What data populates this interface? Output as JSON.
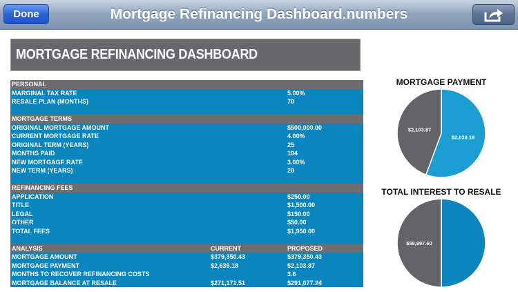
{
  "navbar": {
    "done_label": "Done",
    "title": "Mortgage Refinancing Dashboard.numbers",
    "share_icon": "share-icon"
  },
  "banner": {
    "title": "MORTGAGE REFINANCING DASHBOARD"
  },
  "table": {
    "rows": [
      {
        "type": "hdr",
        "cells": [
          "PERSONAL",
          "",
          ""
        ]
      },
      {
        "cells": [
          "MARGINAL TAX RATE",
          "",
          "5.00%"
        ]
      },
      {
        "cells": [
          "RESALE PLAN (MONTHS)",
          "",
          "70"
        ]
      },
      {
        "cells": [
          "",
          "",
          ""
        ]
      },
      {
        "type": "hdr",
        "cells": [
          "MORTGAGE TERMS",
          "",
          ""
        ]
      },
      {
        "cells": [
          "ORIGINAL MORTGAGE AMOUNT",
          "",
          "$500,000.00"
        ]
      },
      {
        "cells": [
          "CURRENT MORTGAGE RATE",
          "",
          "4.00%"
        ]
      },
      {
        "cells": [
          "ORIGINAL TERM (YEARS)",
          "",
          "25"
        ]
      },
      {
        "cells": [
          "MONTHS PAID",
          "",
          "104"
        ]
      },
      {
        "cells": [
          "NEW MORTGAGE RATE",
          "",
          "3.00%"
        ]
      },
      {
        "cells": [
          "NEW TERM (YEARS)",
          "",
          "20"
        ]
      },
      {
        "cells": [
          "",
          "",
          ""
        ]
      },
      {
        "type": "hdr",
        "cells": [
          "REFINANCING FEES",
          "",
          ""
        ]
      },
      {
        "cells": [
          "APPLICATION",
          "",
          "$250.00"
        ]
      },
      {
        "cells": [
          "TITLE",
          "",
          "$1,500.00"
        ]
      },
      {
        "cells": [
          "LEGAL",
          "",
          "$150.00"
        ]
      },
      {
        "cells": [
          "OTHER",
          "",
          "$50.00"
        ]
      },
      {
        "cells": [
          "TOTAL FEES",
          "",
          "$1,950.00"
        ]
      },
      {
        "cells": [
          "",
          "",
          ""
        ]
      },
      {
        "type": "hdr",
        "cells": [
          "ANALYSIS",
          "CURRENT",
          "PROPOSED"
        ]
      },
      {
        "cells": [
          "MORTGAGE AMOUNT",
          "$379,350.43",
          "$379,350.43"
        ]
      },
      {
        "cells": [
          "MORTGAGE PAYMENT",
          "$2,639.18",
          "$2,103.87"
        ]
      },
      {
        "cells": [
          "MONTHS TO RECOVER REFINANCING COSTS",
          "",
          "3.6"
        ]
      },
      {
        "cells": [
          "MORTGAGE BALANCE AT RESALE",
          "$271,171.51",
          "$291,077.24"
        ]
      }
    ]
  },
  "chart_data": [
    {
      "type": "pie",
      "title": "MORTGAGE PAYMENT",
      "slices": [
        {
          "label": "$2,639.18",
          "value": 2639.18,
          "color": "#1a9dd2"
        },
        {
          "label": "$2,103.87",
          "value": 2103.87,
          "color": "#646367"
        }
      ]
    },
    {
      "type": "pie",
      "title": "TOTAL INTEREST TO RESALE",
      "slices": [
        {
          "label": "",
          "value": null,
          "color": "#0a85bd"
        },
        {
          "label": "$58,997.60",
          "value": 58997.6,
          "color": "#646367"
        }
      ]
    }
  ]
}
